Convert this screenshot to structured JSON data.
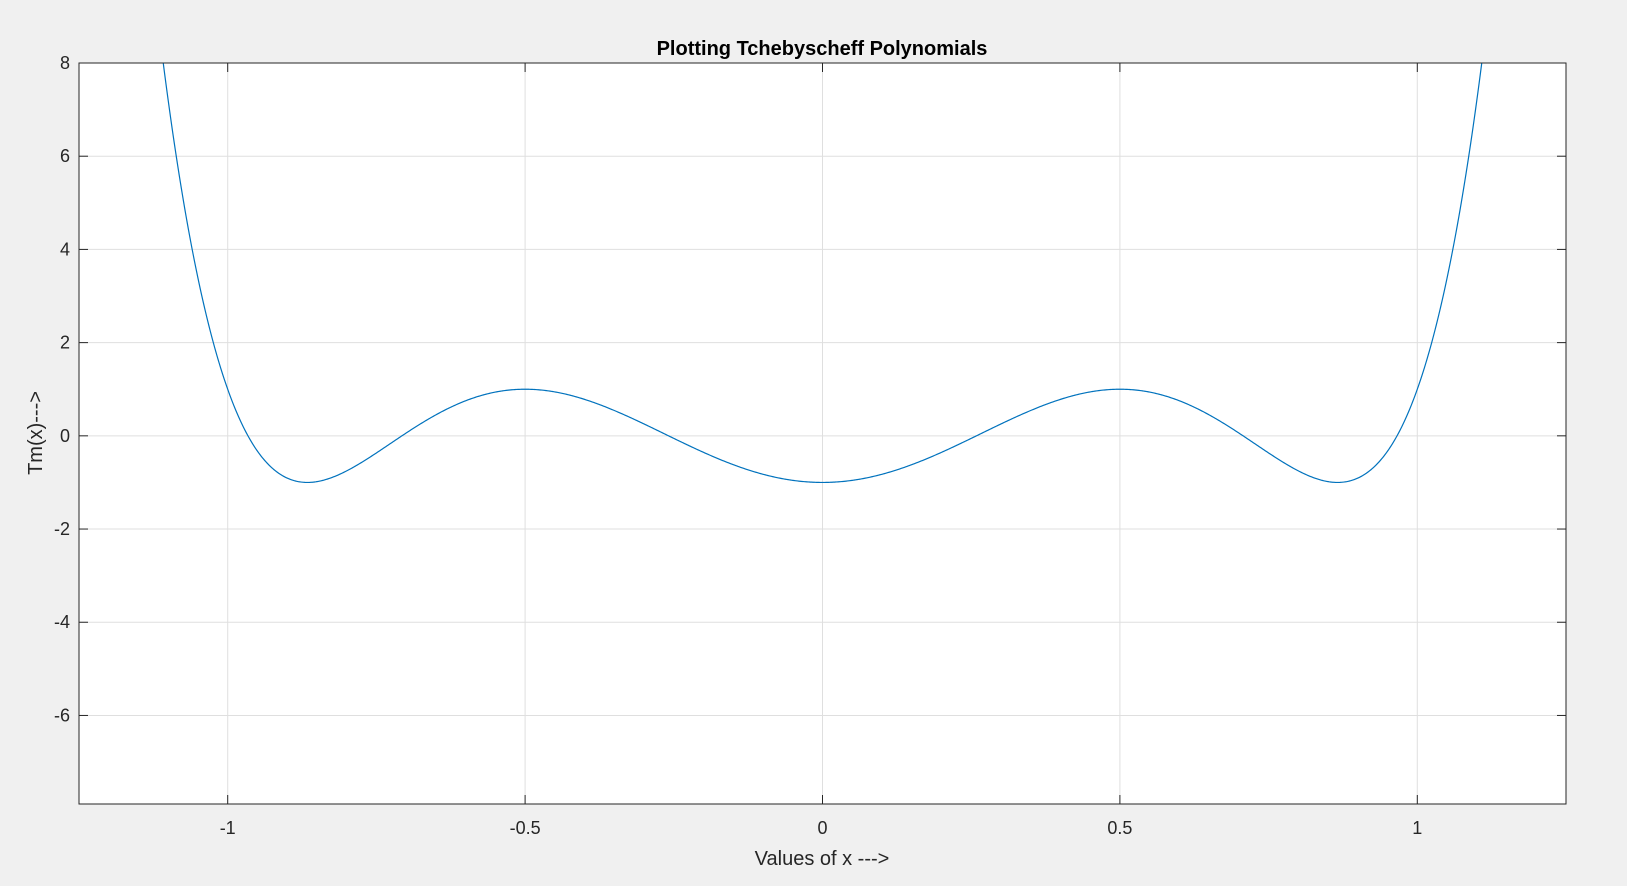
{
  "chart_data": {
    "type": "line",
    "title": "Plotting Tchebyscheff Polynomials",
    "xlabel": "Values of x --->",
    "ylabel": "Tm(x)--->",
    "xlim": [
      -1.25,
      1.25
    ],
    "ylim": [
      -7.9,
      8
    ],
    "xticks": [
      -1,
      -0.5,
      0,
      0.5,
      1
    ],
    "xtick_labels": [
      "-1",
      "-0.5",
      "0",
      "0.5",
      "1"
    ],
    "yticks": [
      -6,
      -4,
      -2,
      0,
      2,
      4,
      6,
      8
    ],
    "ytick_labels": [
      "-6",
      "-4",
      "-2",
      "0",
      "2",
      "4",
      "6",
      "8"
    ],
    "grid": true,
    "series": [
      {
        "function": "T6(x) = 32x^6 - 48x^4 + 18x^2 - 1",
        "x_range": [
          -1.2,
          1.2
        ],
        "color": "#0072bd"
      }
    ]
  },
  "colors": {
    "figure_background": "#f0f0f0",
    "axes_background": "#ffffff",
    "grid": "#dfdfdf",
    "axis": "#262626",
    "line": "#0072bd"
  }
}
